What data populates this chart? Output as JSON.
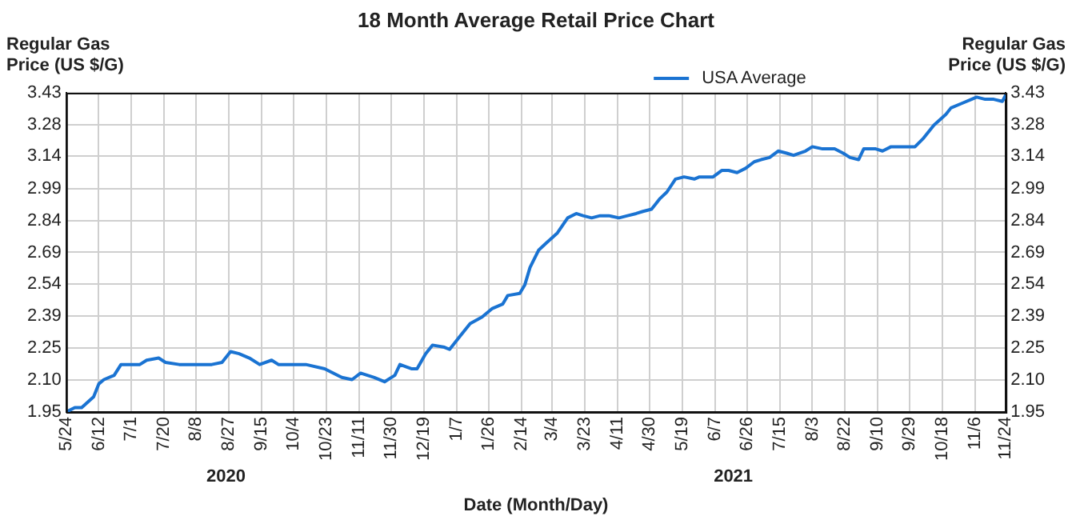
{
  "chart_data": {
    "type": "line",
    "title": "18 Month Average Retail Price Chart",
    "xlabel": "Date (Month/Day)",
    "ylabel": "Regular Gas Price (US $/G)",
    "y2label": "Regular Gas Price (US $/G)",
    "x": [
      "2020-05-24",
      "2020-05-29",
      "2020-06-02",
      "2020-06-09",
      "2020-06-12",
      "2020-06-15",
      "2020-06-21",
      "2020-06-25",
      "2020-07-01",
      "2020-07-06",
      "2020-07-10",
      "2020-07-17",
      "2020-07-21",
      "2020-07-29",
      "2020-08-08",
      "2020-08-17",
      "2020-08-23",
      "2020-08-28",
      "2020-09-02",
      "2020-09-08",
      "2020-09-14",
      "2020-09-21",
      "2020-09-25",
      "2020-10-05",
      "2020-10-11",
      "2020-10-22",
      "2020-11-01",
      "2020-11-07",
      "2020-11-12",
      "2020-11-20",
      "2020-11-26",
      "2020-12-02",
      "2020-12-05",
      "2020-12-12",
      "2020-12-15",
      "2020-12-20",
      "2020-12-24",
      "2020-12-31",
      "2021-01-03",
      "2021-01-09",
      "2021-01-15",
      "2021-01-22",
      "2021-01-28",
      "2021-02-03",
      "2021-02-06",
      "2021-02-13",
      "2021-02-16",
      "2021-02-19",
      "2021-02-24",
      "2021-02-28",
      "2021-03-07",
      "2021-03-13",
      "2021-03-18",
      "2021-03-22",
      "2021-03-27",
      "2021-04-01",
      "2021-04-06",
      "2021-04-12",
      "2021-04-17",
      "2021-04-22",
      "2021-04-26",
      "2021-05-01",
      "2021-05-06",
      "2021-05-10",
      "2021-05-15",
      "2021-05-20",
      "2021-05-26",
      "2021-05-29",
      "2021-06-06",
      "2021-06-11",
      "2021-06-15",
      "2021-06-20",
      "2021-06-25",
      "2021-06-30",
      "2021-07-04",
      "2021-07-09",
      "2021-07-14",
      "2021-07-19",
      "2021-07-23",
      "2021-07-30",
      "2021-08-03",
      "2021-08-09",
      "2021-08-16",
      "2021-08-21",
      "2021-08-25",
      "2021-08-30",
      "2021-09-02",
      "2021-09-09",
      "2021-09-13",
      "2021-09-18",
      "2021-09-24",
      "2021-10-02",
      "2021-10-07",
      "2021-10-13",
      "2021-10-20",
      "2021-10-23",
      "2021-10-29",
      "2021-11-04",
      "2021-11-07",
      "2021-11-12",
      "2021-11-17",
      "2021-11-22",
      "2021-11-24"
    ],
    "series": [
      {
        "name": "USA Average",
        "color": "#1a73d2",
        "values": [
          1.95,
          1.97,
          1.97,
          2.02,
          2.08,
          2.1,
          2.12,
          2.17,
          2.17,
          2.17,
          2.19,
          2.2,
          2.18,
          2.17,
          2.17,
          2.17,
          2.18,
          2.23,
          2.22,
          2.2,
          2.17,
          2.19,
          2.17,
          2.17,
          2.17,
          2.15,
          2.11,
          2.1,
          2.13,
          2.11,
          2.09,
          2.12,
          2.17,
          2.15,
          2.15,
          2.22,
          2.26,
          2.25,
          2.24,
          2.3,
          2.36,
          2.39,
          2.43,
          2.45,
          2.49,
          2.5,
          2.54,
          2.62,
          2.7,
          2.73,
          2.78,
          2.85,
          2.87,
          2.86,
          2.85,
          2.86,
          2.86,
          2.85,
          2.86,
          2.87,
          2.88,
          2.89,
          2.94,
          2.97,
          3.03,
          3.04,
          3.03,
          3.04,
          3.04,
          3.07,
          3.07,
          3.06,
          3.08,
          3.11,
          3.12,
          3.13,
          3.16,
          3.15,
          3.14,
          3.16,
          3.18,
          3.17,
          3.17,
          3.15,
          3.13,
          3.12,
          3.17,
          3.17,
          3.16,
          3.18,
          3.18,
          3.18,
          3.22,
          3.28,
          3.33,
          3.36,
          3.38,
          3.4,
          3.41,
          3.4,
          3.4,
          3.39,
          3.42
        ]
      }
    ],
    "xlim": [
      "2020-05-24",
      "2021-11-24"
    ],
    "xticks": [
      {
        "value": "2020-05-24",
        "label": "5/24"
      },
      {
        "value": "2020-06-12",
        "label": "6/12"
      },
      {
        "value": "2020-07-01",
        "label": "7/1"
      },
      {
        "value": "2020-07-20",
        "label": "7/20"
      },
      {
        "value": "2020-08-08",
        "label": "8/8"
      },
      {
        "value": "2020-08-27",
        "label": "8/27"
      },
      {
        "value": "2020-09-15",
        "label": "9/15"
      },
      {
        "value": "2020-10-04",
        "label": "10/4"
      },
      {
        "value": "2020-10-23",
        "label": "10/23"
      },
      {
        "value": "2020-11-11",
        "label": "11/11"
      },
      {
        "value": "2020-11-30",
        "label": "11/30"
      },
      {
        "value": "2020-12-19",
        "label": "12/19"
      },
      {
        "value": "2021-01-07",
        "label": "1/7"
      },
      {
        "value": "2021-01-26",
        "label": "1/26"
      },
      {
        "value": "2021-02-14",
        "label": "2/14"
      },
      {
        "value": "2021-03-04",
        "label": "3/4"
      },
      {
        "value": "2021-03-23",
        "label": "3/23"
      },
      {
        "value": "2021-04-11",
        "label": "4/11"
      },
      {
        "value": "2021-04-30",
        "label": "4/30"
      },
      {
        "value": "2021-05-19",
        "label": "5/19"
      },
      {
        "value": "2021-06-07",
        "label": "6/7"
      },
      {
        "value": "2021-06-26",
        "label": "6/26"
      },
      {
        "value": "2021-07-15",
        "label": "7/15"
      },
      {
        "value": "2021-08-03",
        "label": "8/3"
      },
      {
        "value": "2021-08-22",
        "label": "8/22"
      },
      {
        "value": "2021-09-10",
        "label": "9/10"
      },
      {
        "value": "2021-09-29",
        "label": "9/29"
      },
      {
        "value": "2021-10-18",
        "label": "10/18"
      },
      {
        "value": "2021-11-06",
        "label": "11/6"
      },
      {
        "value": "2021-11-24",
        "label": "11/24"
      }
    ],
    "ylim": [
      1.95,
      3.43
    ],
    "yticks": [
      1.95,
      {
        "value": 2.098,
        "label": "2.10"
      },
      {
        "value": 2.246,
        "label": "2.25"
      },
      {
        "value": 2.394,
        "label": "2.39"
      },
      {
        "value": 2.542,
        "label": "2.54"
      },
      2.69,
      {
        "value": 2.838,
        "label": "2.84"
      },
      {
        "value": 2.986,
        "label": "2.99"
      },
      {
        "value": 3.136,
        "label": "3.14"
      },
      {
        "value": 3.282,
        "label": "3.28"
      },
      3.43
    ],
    "y2lim": [
      1.95,
      3.43
    ],
    "y2ticks": [
      1.95,
      {
        "value": 2.098,
        "label": "2.10"
      },
      {
        "value": 2.246,
        "label": "2.25"
      },
      {
        "value": 2.394,
        "label": "2.39"
      },
      {
        "value": 2.542,
        "label": "2.54"
      },
      2.69,
      {
        "value": 2.838,
        "label": "2.84"
      },
      {
        "value": 2.986,
        "label": "2.99"
      },
      {
        "value": 3.136,
        "label": "3.14"
      },
      {
        "value": 3.282,
        "label": "3.28"
      },
      3.43
    ],
    "annotations": [
      "2020",
      "2021"
    ],
    "grid": true,
    "legend": "top right",
    "marker": "none",
    "line_style": "solid"
  }
}
